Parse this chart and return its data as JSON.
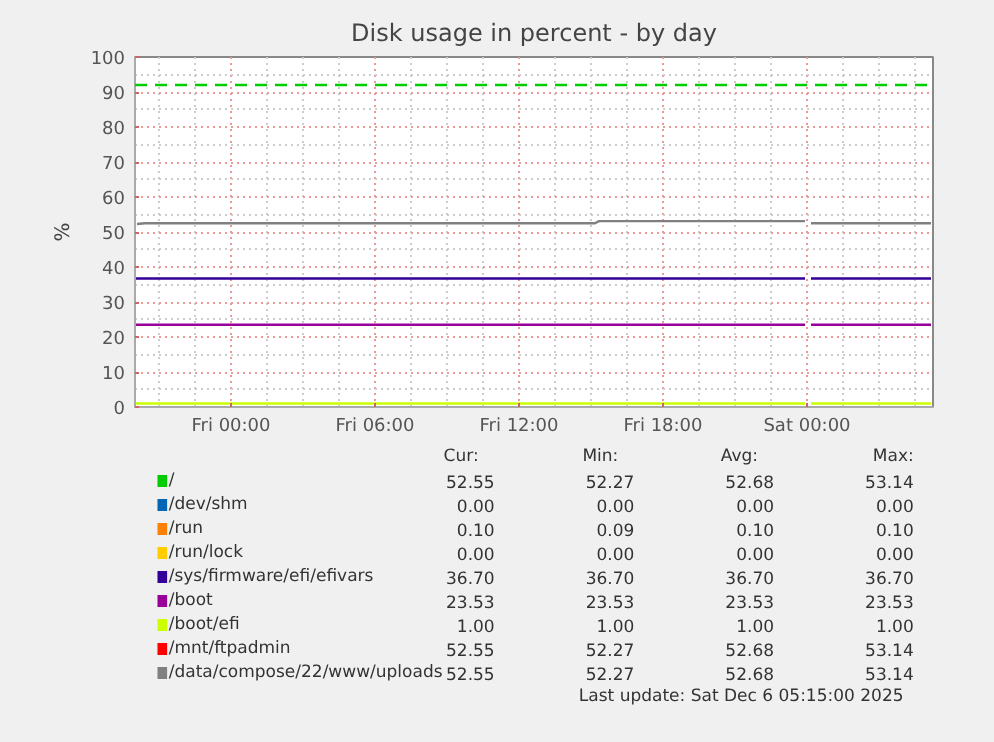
{
  "chart_data": {
    "type": "line",
    "title": "Disk usage in percent - by day",
    "ylabel": "%",
    "xlim": [
      "2025-12-04T20:00",
      "2025-12-06T05:15"
    ],
    "xticks": [
      {
        "value": "2025-12-05T00:00",
        "label": "Fri 00:00"
      },
      {
        "value": "2025-12-05T06:00",
        "label": "Fri 06:00"
      },
      {
        "value": "2025-12-05T12:00",
        "label": "Fri 12:00"
      },
      {
        "value": "2025-12-05T18:00",
        "label": "Fri 18:00"
      },
      {
        "value": "2025-12-06T00:00",
        "label": "Sat 00:00"
      }
    ],
    "ylim": [
      0,
      100
    ],
    "yticks": [
      0,
      10,
      20,
      30,
      40,
      50,
      60,
      70,
      80,
      90,
      100
    ],
    "grid": true,
    "legend": "bottom",
    "ref_lines": [
      {
        "axis": "y",
        "value": 92,
        "color": "#00cc00",
        "line_style": "dashed"
      }
    ],
    "series": [
      {
        "name": "/",
        "color": "#00cc00"
      },
      {
        "name": "/dev/shm",
        "color": "#0066b3"
      },
      {
        "name": "/run",
        "color": "#ff8000"
      },
      {
        "name": "/run/lock",
        "color": "#ffcc00"
      },
      {
        "name": "/sys/firmware/efi/efivars",
        "color": "#330099",
        "x": [
          "2025-12-04T20:00",
          "2025-12-05T23:55",
          "2025-12-06T00:00",
          "2025-12-06T00:10",
          "2025-12-06T05:10"
        ],
        "values": [
          36.7,
          36.7,
          null,
          36.7,
          36.7
        ]
      },
      {
        "name": "/boot",
        "color": "#990099",
        "x": [
          "2025-12-04T20:00",
          "2025-12-05T23:55",
          "2025-12-06T00:00",
          "2025-12-06T00:10",
          "2025-12-06T05:10"
        ],
        "values": [
          23.5,
          23.5,
          null,
          23.5,
          23.5
        ]
      },
      {
        "name": "/boot/efi",
        "color": "#ccff00",
        "x": [
          "2025-12-04T20:00",
          "2025-12-05T23:55",
          "2025-12-06T00:00",
          "2025-12-06T00:10",
          "2025-12-06T05:10"
        ],
        "values": [
          1.0,
          1.0,
          null,
          1.0,
          1.0
        ]
      },
      {
        "name": "/mnt/ftpadmin",
        "color": "#ff0000"
      },
      {
        "name": "/data/compose/22/www/uploads",
        "color": "#808080",
        "x": [
          "2025-12-04T20:05",
          "2025-12-04T20:25",
          "2025-12-05T15:10",
          "2025-12-05T15:20",
          "2025-12-05T23:55",
          "2025-12-06T00:00",
          "2025-12-06T00:10",
          "2025-12-06T05:10"
        ],
        "values": [
          52.3,
          52.5,
          52.5,
          53.1,
          53.1,
          null,
          52.5,
          52.5
        ]
      }
    ],
    "annotations": [
      "Cur:",
      "Min:",
      "Avg:",
      "Max:",
      "52.55",
      "52.27",
      "52.68",
      "53.14",
      "0.00",
      "0.00",
      "0.00",
      "0.00",
      "0.10",
      "0.09",
      "0.10",
      "0.10",
      "0.00",
      "0.00",
      "0.00",
      "0.00",
      "36.70",
      "36.70",
      "36.70",
      "36.70",
      "23.53",
      "23.53",
      "23.53",
      "23.53",
      "1.00",
      "1.00",
      "1.00",
      "1.00",
      "52.55",
      "52.27",
      "52.68",
      "53.14",
      "52.55",
      "52.27",
      "52.68",
      "53.14",
      "Last update: Sat Dec  6 05:15:00 2025"
    ]
  }
}
